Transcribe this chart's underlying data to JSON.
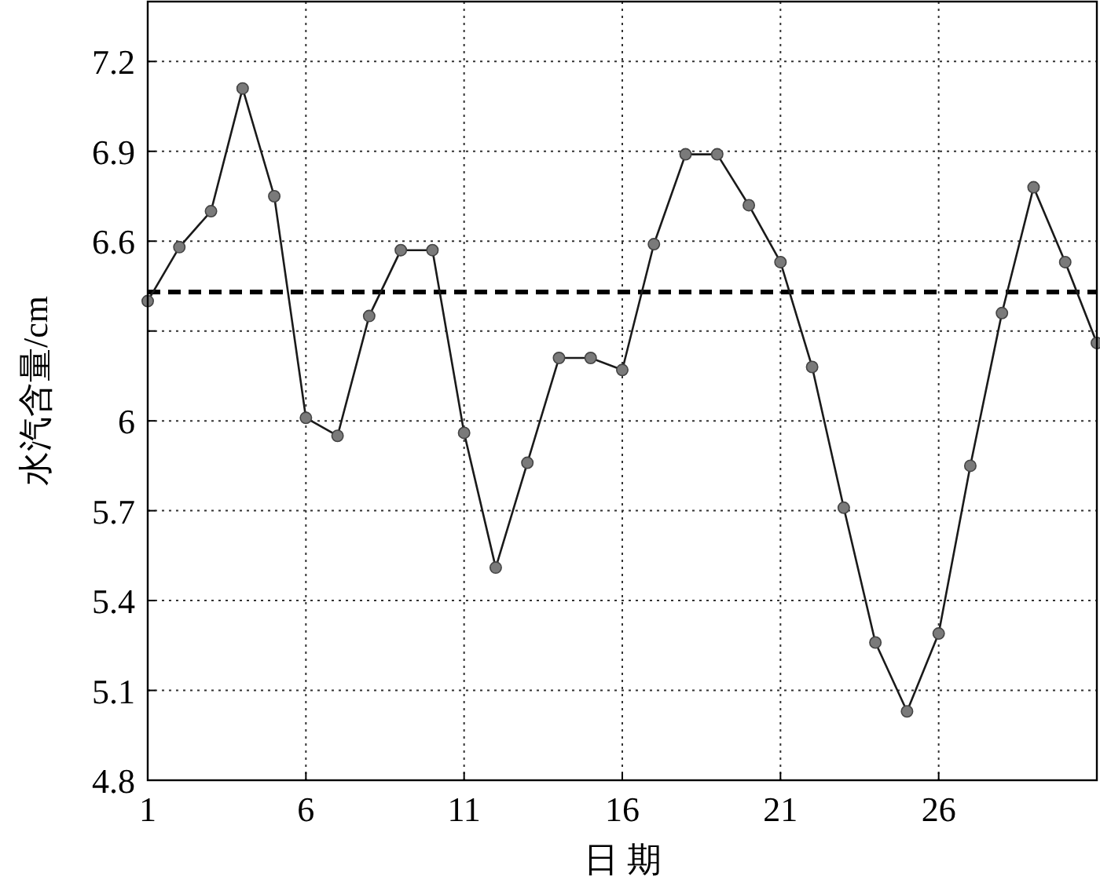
{
  "chart_data": {
    "type": "line",
    "xlabel": "日 期",
    "ylabel": "水汽含量/cm",
    "x": [
      1,
      2,
      3,
      4,
      5,
      6,
      7,
      8,
      9,
      10,
      11,
      12,
      13,
      14,
      15,
      16,
      17,
      18,
      19,
      20,
      21,
      22,
      23,
      24,
      25,
      26,
      27,
      28,
      29,
      30,
      31
    ],
    "series": [
      {
        "color": "#1a1a1a",
        "values": [
          6.4,
          6.58,
          6.7,
          7.11,
          6.75,
          6.01,
          5.95,
          6.35,
          6.57,
          6.57,
          5.96,
          5.51,
          5.86,
          6.21,
          6.21,
          6.17,
          6.59,
          6.89,
          6.89,
          6.72,
          6.53,
          6.18,
          5.71,
          5.26,
          5.03,
          5.29,
          5.85,
          6.36,
          6.78,
          6.53,
          6.26
        ]
      }
    ],
    "marker": "circle",
    "line_style": "solid",
    "xlim": [
      1,
      31
    ],
    "xticks": [
      1,
      6,
      11,
      16,
      21,
      26
    ],
    "ylim": [
      4.8,
      7.4
    ],
    "yticks": [
      4.8,
      5.1,
      5.4,
      5.7,
      6,
      {
        "value": 6.3,
        "label": null
      },
      6.6,
      6.9,
      7.2
    ],
    "ref_lines": [
      {
        "axis": "y",
        "value": 6.43,
        "color": "#000000",
        "line_style": "dashed"
      }
    ],
    "grid": true
  }
}
